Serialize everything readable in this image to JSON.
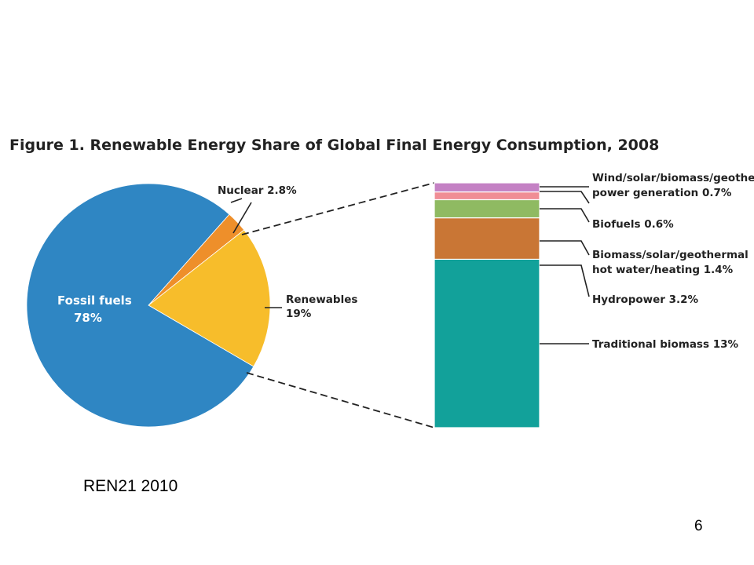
{
  "chart_data": [
    {
      "type": "pie",
      "title": "Figure 1. Renewable Energy Share of Global Final Energy Consumption, 2008",
      "categories": [
        "Fossil fuels",
        "Nuclear",
        "Renewables"
      ],
      "values": [
        78,
        2.8,
        19
      ],
      "display_values": [
        "78%",
        "2.8%",
        "19%"
      ],
      "colors": [
        "#2f86c3",
        "#ee8f2a",
        "#f7bd2b"
      ]
    },
    {
      "type": "bar",
      "stacked": true,
      "categories": [
        "Traditional biomass",
        "Hydropower",
        "Biomass/solar/geothermal hot water/heating",
        "Biofuels",
        "Wind/solar/biomass/geothermal power generation"
      ],
      "values": [
        13,
        3.2,
        1.4,
        0.6,
        0.7
      ],
      "colors": [
        "#12a19a",
        "#c97635",
        "#8fba62",
        "#f08d95",
        "#c481c4"
      ]
    }
  ],
  "labels": {
    "fossil_line1": "Fossil fuels",
    "fossil_line2": "78%",
    "nuclear": "Nuclear 2.8%",
    "renewables_line1": "Renewables",
    "renewables_line2": "19%",
    "wind_line1": "Wind/solar/biomass/geothermal",
    "wind_line2": "power generation 0.7%",
    "biofuels": "Biofuels 0.6%",
    "heat_line1": "Biomass/solar/geothermal",
    "heat_line2": "hot water/heating 1.4%",
    "hydro": "Hydropower 3.2%",
    "traditional": "Traditional biomass 13%"
  },
  "source": "REN21 2010",
  "page_number": "6"
}
